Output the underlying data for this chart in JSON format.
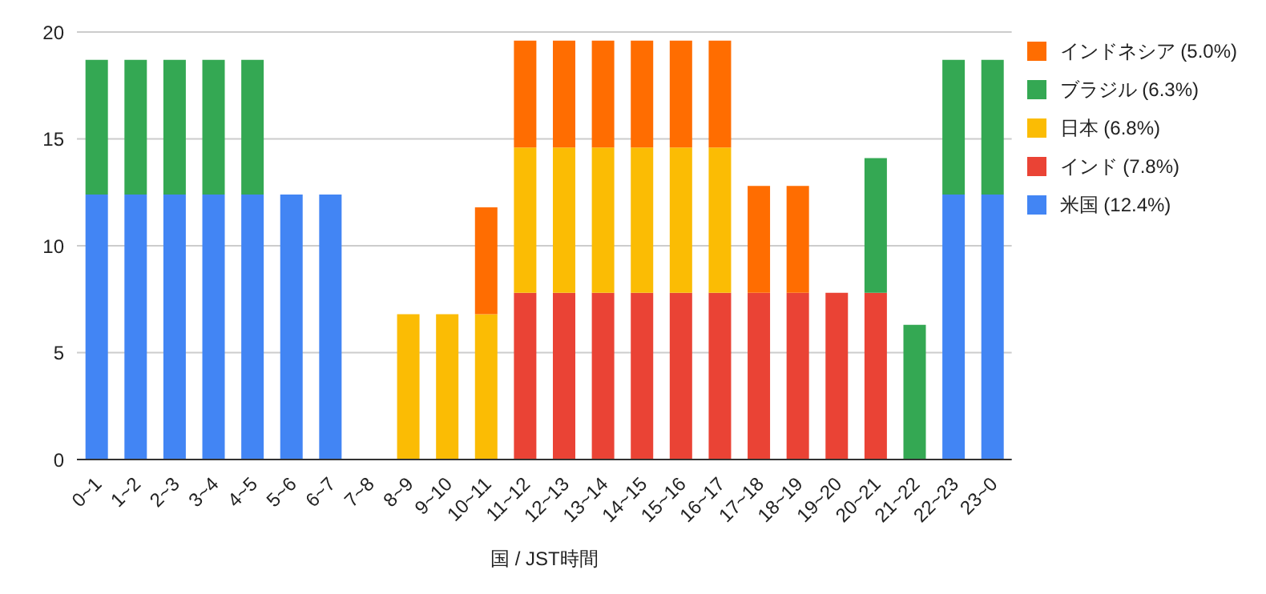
{
  "chart_data": {
    "type": "bar",
    "stacked": true,
    "xlabel": "国 / JST時間",
    "categories": [
      "0~1",
      "1~2",
      "2~3",
      "3~4",
      "4~5",
      "5~6",
      "6~7",
      "7~8",
      "8~9",
      "9~10",
      "10~11",
      "11~12",
      "12~13",
      "13~14",
      "14~15",
      "15~16",
      "16~17",
      "17~18",
      "18~19",
      "19~20",
      "20~21",
      "21~22",
      "22~23",
      "23~0"
    ],
    "series": [
      {
        "name": "米国 (12.4%)",
        "color": "#4285f4",
        "values": [
          12.4,
          12.4,
          12.4,
          12.4,
          12.4,
          12.4,
          12.4,
          null,
          null,
          null,
          null,
          null,
          null,
          null,
          null,
          null,
          null,
          null,
          null,
          null,
          null,
          null,
          12.4,
          12.4
        ]
      },
      {
        "name": "インド (7.8%)",
        "color": "#ea4335",
        "values": [
          null,
          null,
          null,
          null,
          null,
          null,
          null,
          null,
          null,
          null,
          null,
          7.8,
          7.8,
          7.8,
          7.8,
          7.8,
          7.8,
          7.8,
          7.8,
          7.8,
          7.8,
          null,
          null,
          null
        ]
      },
      {
        "name": "日本 (6.8%)",
        "color": "#fbbc04",
        "values": [
          null,
          null,
          null,
          null,
          null,
          null,
          null,
          null,
          6.8,
          6.8,
          6.8,
          6.8,
          6.8,
          6.8,
          6.8,
          6.8,
          6.8,
          null,
          null,
          null,
          null,
          null,
          null,
          null
        ]
      },
      {
        "name": "ブラジル (6.3%)",
        "color": "#34a853",
        "values": [
          6.3,
          6.3,
          6.3,
          6.3,
          6.3,
          null,
          null,
          null,
          null,
          null,
          null,
          null,
          null,
          null,
          null,
          null,
          null,
          null,
          null,
          null,
          6.3,
          6.3,
          6.3,
          6.3
        ]
      },
      {
        "name": "インドネシア (5.0%)",
        "color": "#ff6d01",
        "values": [
          null,
          null,
          null,
          null,
          null,
          null,
          null,
          null,
          null,
          null,
          5.0,
          5.0,
          5.0,
          5.0,
          5.0,
          5.0,
          5.0,
          5.0,
          5.0,
          null,
          null,
          null,
          null,
          null
        ]
      }
    ],
    "ylim": [
      0,
      20
    ],
    "yticks": [
      0,
      5,
      10,
      15,
      20
    ],
    "grid": "y",
    "legend": "right"
  }
}
